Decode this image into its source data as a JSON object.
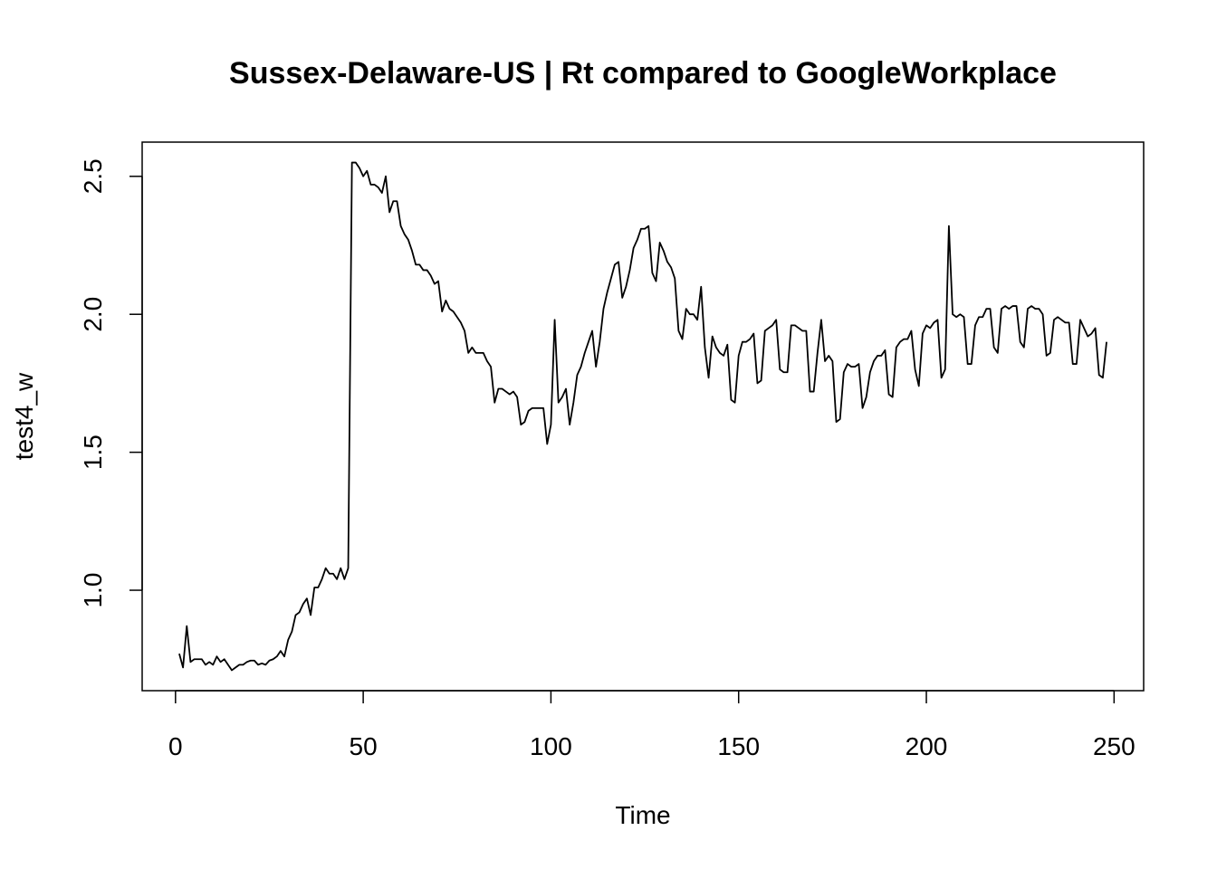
{
  "chart_data": {
    "type": "line",
    "title": "Sussex-Delaware-US | Rt compared to GoogleWorkplace",
    "x_label": "Time",
    "y_label": "test4_w",
    "x": [
      1,
      2,
      3,
      4,
      5,
      6,
      7,
      8,
      9,
      10,
      11,
      12,
      13,
      14,
      15,
      16,
      17,
      18,
      19,
      20,
      21,
      22,
      23,
      24,
      25,
      26,
      27,
      28,
      29,
      30,
      31,
      32,
      33,
      34,
      35,
      36,
      37,
      38,
      39,
      40,
      41,
      42,
      43,
      44,
      45,
      46,
      47,
      48,
      49,
      50,
      51,
      52,
      53,
      54,
      55,
      56,
      57,
      58,
      59,
      60,
      61,
      62,
      63,
      64,
      65,
      66,
      67,
      68,
      69,
      70,
      71,
      72,
      73,
      74,
      75,
      76,
      77,
      78,
      79,
      80,
      81,
      82,
      83,
      84,
      85,
      86,
      87,
      88,
      89,
      90,
      91,
      92,
      93,
      94,
      95,
      96,
      97,
      98,
      99,
      100,
      101,
      102,
      103,
      104,
      105,
      106,
      107,
      108,
      109,
      110,
      111,
      112,
      113,
      114,
      115,
      116,
      117,
      118,
      119,
      120,
      121,
      122,
      123,
      124,
      125,
      126,
      127,
      128,
      129,
      130,
      131,
      132,
      133,
      134,
      135,
      136,
      137,
      138,
      139,
      140,
      141,
      142,
      143,
      144,
      145,
      146,
      147,
      148,
      149,
      150,
      151,
      152,
      153,
      154,
      155,
      156,
      157,
      158,
      159,
      160,
      161,
      162,
      163,
      164,
      165,
      166,
      167,
      168,
      169,
      170,
      171,
      172,
      173,
      174,
      175,
      176,
      177,
      178,
      179,
      180,
      181,
      182,
      183,
      184,
      185,
      186,
      187,
      188,
      189,
      190,
      191,
      192,
      193,
      194,
      195,
      196,
      197,
      198,
      199,
      200,
      201,
      202,
      203,
      204,
      205,
      206,
      207,
      208,
      209,
      210,
      211,
      212,
      213,
      214,
      215,
      216,
      217,
      218,
      219,
      220,
      221,
      222,
      223,
      224,
      225,
      226,
      227,
      228,
      229,
      230,
      231,
      232,
      233,
      234,
      235,
      236,
      237,
      238,
      239,
      240,
      241,
      242,
      243,
      244,
      245,
      246,
      247,
      248
    ],
    "series": [
      {
        "color": "#000000",
        "values": [
          0.77,
          0.72,
          0.87,
          0.74,
          0.75,
          0.75,
          0.75,
          0.73,
          0.74,
          0.73,
          0.76,
          0.74,
          0.75,
          0.73,
          0.71,
          0.72,
          0.73,
          0.73,
          0.74,
          0.745,
          0.745,
          0.73,
          0.735,
          0.73,
          0.745,
          0.75,
          0.76,
          0.78,
          0.76,
          0.82,
          0.85,
          0.91,
          0.92,
          0.95,
          0.97,
          0.91,
          1.01,
          1.01,
          1.04,
          1.08,
          1.06,
          1.06,
          1.04,
          1.08,
          1.04,
          1.08,
          2.55,
          2.55,
          2.53,
          2.5,
          2.52,
          2.47,
          2.47,
          2.46,
          2.44,
          2.5,
          2.37,
          2.41,
          2.41,
          2.32,
          2.29,
          2.27,
          2.23,
          2.18,
          2.18,
          2.16,
          2.16,
          2.14,
          2.11,
          2.12,
          2.01,
          2.05,
          2.02,
          2.01,
          1.99,
          1.97,
          1.94,
          1.86,
          1.88,
          1.86,
          1.86,
          1.86,
          1.83,
          1.81,
          1.68,
          1.73,
          1.73,
          1.72,
          1.71,
          1.72,
          1.7,
          1.6,
          1.61,
          1.65,
          1.66,
          1.66,
          1.66,
          1.66,
          1.53,
          1.6,
          1.98,
          1.68,
          1.7,
          1.73,
          1.6,
          1.68,
          1.78,
          1.81,
          1.86,
          1.9,
          1.94,
          1.81,
          1.9,
          2.02,
          2.08,
          2.13,
          2.18,
          2.19,
          2.06,
          2.1,
          2.16,
          2.24,
          2.27,
          2.31,
          2.31,
          2.32,
          2.15,
          2.12,
          2.26,
          2.23,
          2.19,
          2.17,
          2.13,
          1.94,
          1.91,
          2.02,
          2.0,
          2.0,
          1.98,
          2.1,
          1.88,
          1.77,
          1.92,
          1.88,
          1.86,
          1.85,
          1.89,
          1.69,
          1.68,
          1.85,
          1.9,
          1.9,
          1.91,
          1.93,
          1.75,
          1.76,
          1.94,
          1.95,
          1.96,
          1.98,
          1.8,
          1.79,
          1.79,
          1.96,
          1.96,
          1.95,
          1.94,
          1.94,
          1.72,
          1.72,
          1.86,
          1.98,
          1.83,
          1.85,
          1.83,
          1.61,
          1.62,
          1.79,
          1.82,
          1.81,
          1.81,
          1.82,
          1.66,
          1.7,
          1.79,
          1.83,
          1.85,
          1.85,
          1.87,
          1.71,
          1.7,
          1.88,
          1.9,
          1.91,
          1.91,
          1.94,
          1.8,
          1.74,
          1.93,
          1.96,
          1.95,
          1.97,
          1.98,
          1.77,
          1.8,
          2.32,
          2.0,
          1.99,
          2.0,
          1.99,
          1.82,
          1.82,
          1.96,
          1.99,
          1.99,
          2.02,
          2.02,
          1.88,
          1.86,
          2.02,
          2.03,
          2.02,
          2.03,
          2.03,
          1.9,
          1.88,
          2.02,
          2.03,
          2.02,
          2.02,
          2.0,
          1.85,
          1.86,
          1.98,
          1.99,
          1.98,
          1.97,
          1.97,
          1.82,
          1.82,
          1.98,
          1.95,
          1.92,
          1.93,
          1.95,
          1.78,
          1.77,
          1.9
        ]
      }
    ],
    "xlim": [
      -8.88,
      257.88
    ],
    "xticks": [
      0,
      50,
      100,
      150,
      200,
      250
    ],
    "ylim": [
      0.636,
      2.624
    ],
    "yticks": [
      {
        "value": 1,
        "label": "1.0"
      },
      1.5,
      {
        "value": 2,
        "label": "2.0"
      },
      2.5
    ],
    "grid": false
  }
}
